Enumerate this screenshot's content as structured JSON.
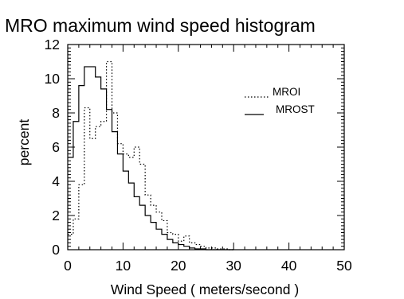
{
  "chart_data": {
    "type": "line",
    "title": "MRO maximum wind speed histogram",
    "xlabel": "Wind Speed ( meters/second )",
    "ylabel": "percent",
    "xlim": [
      0,
      50
    ],
    "ylim": [
      0,
      12
    ],
    "x_ticks": [
      0,
      10,
      20,
      30,
      40,
      50
    ],
    "y_ticks": [
      0,
      2,
      4,
      6,
      8,
      10,
      12
    ],
    "grid": false,
    "legend_position": "top-right",
    "bin_width": 1,
    "x": [
      0,
      1,
      2,
      3,
      4,
      5,
      6,
      7,
      8,
      9,
      10,
      11,
      12,
      13,
      14,
      15,
      16,
      17,
      18,
      19,
      20,
      21,
      22,
      23,
      24,
      25,
      26,
      27,
      28,
      29
    ],
    "series": [
      {
        "name": "MROI",
        "line_style": "dotted",
        "color": "#000000",
        "values": [
          0.9,
          1.8,
          3.8,
          8.3,
          6.5,
          7.2,
          7.5,
          11.0,
          8.0,
          6.2,
          5.6,
          5.4,
          6.0,
          5.0,
          3.2,
          2.6,
          2.2,
          1.7,
          1.0,
          0.9,
          0.5,
          0.8,
          0.4,
          0.3,
          0.2,
          0.1,
          0.1,
          0.05,
          0.05,
          0.0
        ]
      },
      {
        "name": "MROST",
        "line_style": "solid",
        "color": "#000000",
        "values": [
          5.4,
          7.5,
          9.6,
          10.7,
          10.7,
          10.1,
          9.4,
          8.2,
          6.9,
          5.6,
          4.6,
          3.9,
          3.1,
          2.6,
          2.0,
          1.6,
          1.2,
          0.9,
          0.6,
          0.4,
          0.3,
          0.2,
          0.1,
          0.05,
          0.05,
          0.0,
          0.0,
          0.0,
          0.0,
          0.0
        ]
      }
    ]
  }
}
